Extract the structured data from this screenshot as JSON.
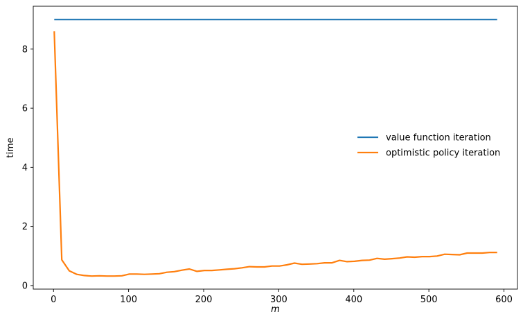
{
  "chart_data": {
    "type": "line",
    "title": "",
    "xlabel": "m",
    "ylabel": "time",
    "xlim": [
      -27,
      618
    ],
    "ylim": [
      -0.12,
      9.45
    ],
    "xticks": [
      0,
      100,
      200,
      300,
      400,
      500,
      600
    ],
    "yticks": [
      0,
      2,
      4,
      6,
      8
    ],
    "grid": false,
    "legend": "center-right",
    "x": [
      1,
      11,
      21,
      31,
      41,
      51,
      61,
      71,
      81,
      91,
      101,
      111,
      121,
      131,
      141,
      151,
      161,
      171,
      181,
      191,
      201,
      211,
      221,
      231,
      241,
      251,
      261,
      271,
      281,
      291,
      301,
      311,
      321,
      331,
      341,
      351,
      361,
      371,
      381,
      391,
      401,
      411,
      421,
      431,
      441,
      451,
      461,
      471,
      481,
      491,
      501,
      511,
      521,
      531,
      541,
      551,
      561,
      571,
      581,
      591
    ],
    "series": [
      {
        "name": "value function iteration",
        "color": "#1f77b4",
        "values": [
          9.0,
          9.0,
          9.0,
          9.0,
          9.0,
          9.0,
          9.0,
          9.0,
          9.0,
          9.0,
          9.0,
          9.0,
          9.0,
          9.0,
          9.0,
          9.0,
          9.0,
          9.0,
          9.0,
          9.0,
          9.0,
          9.0,
          9.0,
          9.0,
          9.0,
          9.0,
          9.0,
          9.0,
          9.0,
          9.0,
          9.0,
          9.0,
          9.0,
          9.0,
          9.0,
          9.0,
          9.0,
          9.0,
          9.0,
          9.0,
          9.0,
          9.0,
          9.0,
          9.0,
          9.0,
          9.0,
          9.0,
          9.0,
          9.0,
          9.0,
          9.0,
          9.0,
          9.0,
          9.0,
          9.0,
          9.0,
          9.0,
          9.0,
          9.0,
          9.0
        ]
      },
      {
        "name": "optimistic policy iteration",
        "color": "#ff7f0e",
        "values": [
          8.6,
          0.87,
          0.5,
          0.38,
          0.34,
          0.32,
          0.33,
          0.32,
          0.32,
          0.33,
          0.39,
          0.39,
          0.38,
          0.39,
          0.4,
          0.45,
          0.47,
          0.52,
          0.56,
          0.48,
          0.51,
          0.51,
          0.53,
          0.55,
          0.57,
          0.6,
          0.64,
          0.63,
          0.63,
          0.66,
          0.66,
          0.7,
          0.76,
          0.72,
          0.73,
          0.74,
          0.77,
          0.77,
          0.85,
          0.81,
          0.82,
          0.85,
          0.86,
          0.92,
          0.89,
          0.91,
          0.93,
          0.97,
          0.96,
          0.98,
          0.98,
          1.0,
          1.06,
          1.05,
          1.04,
          1.1,
          1.1,
          1.1,
          1.12,
          1.12
        ]
      }
    ]
  }
}
